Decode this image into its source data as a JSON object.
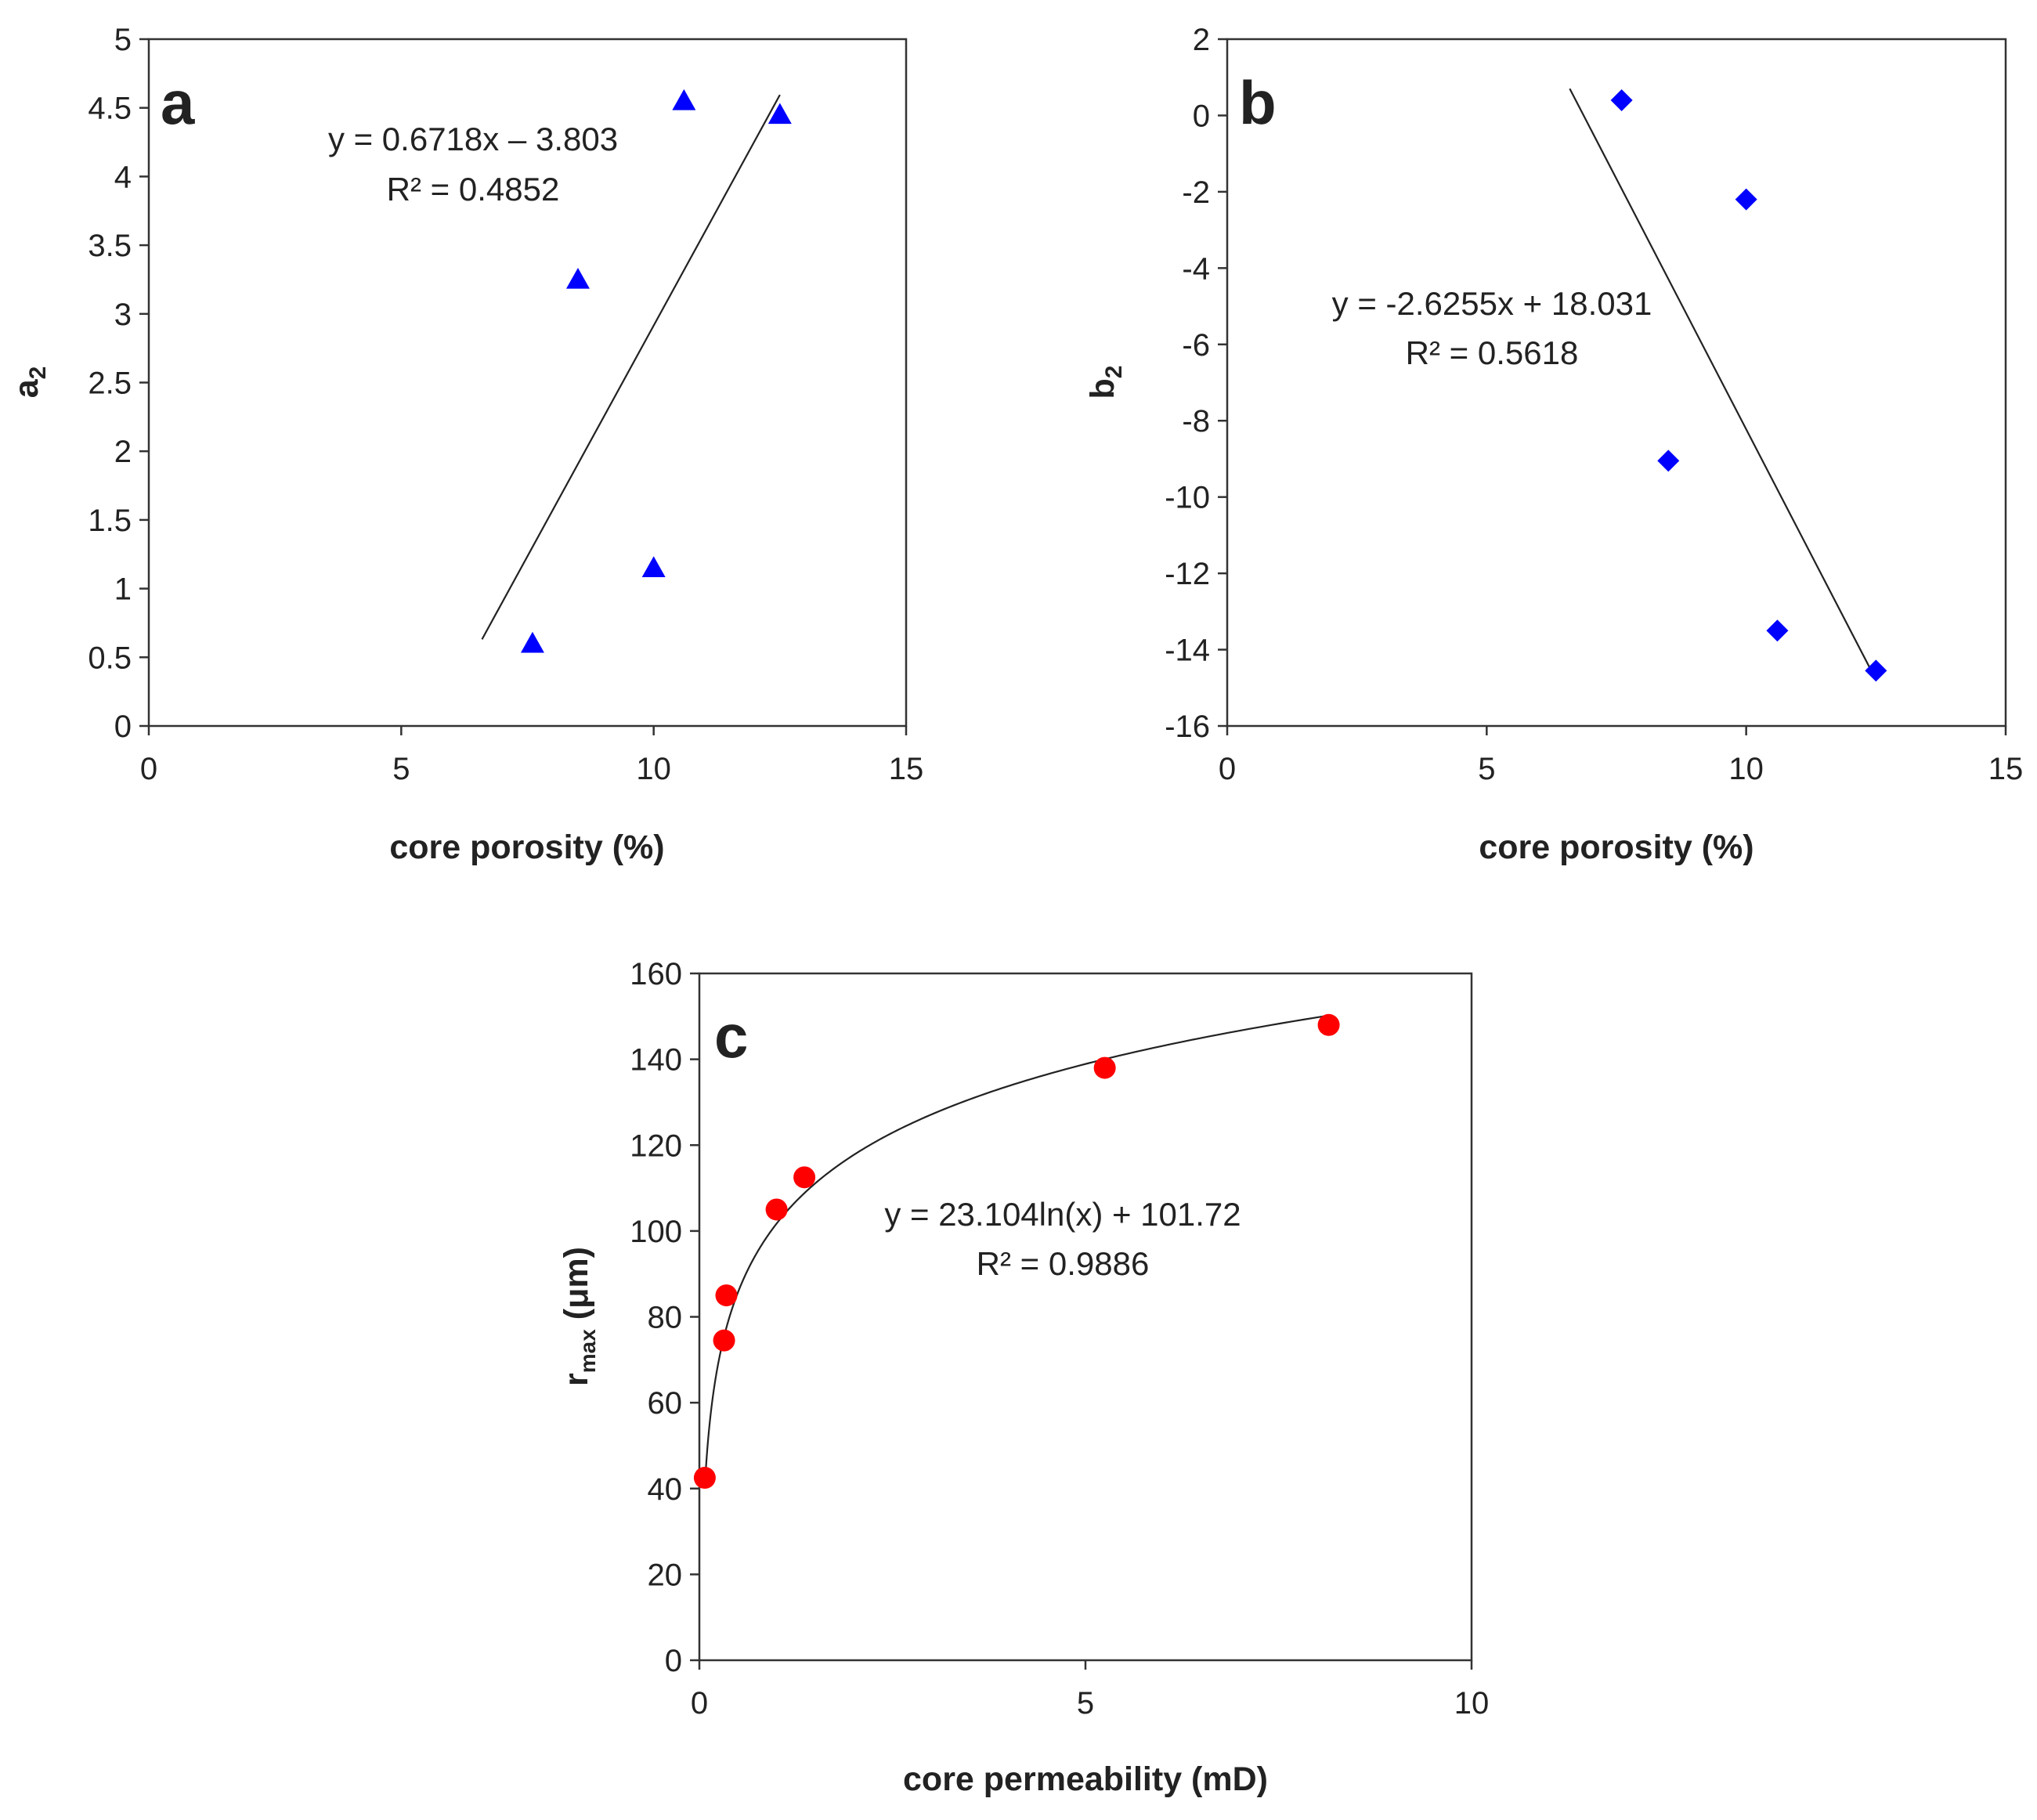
{
  "chart_data": [
    {
      "id": "a",
      "type": "scatter",
      "panel_label": "a",
      "xlabel": "core porosity (%)",
      "ylabel_main": "a",
      "ylabel_sub": "2",
      "xlim": [
        0,
        15
      ],
      "ylim": [
        0,
        5
      ],
      "xticks": [
        0,
        5,
        10,
        15
      ],
      "xtick_labels": [
        "0",
        "5",
        "10",
        "15"
      ],
      "yticks": [
        0,
        0.5,
        1,
        1.5,
        2,
        2.5,
        3,
        3.5,
        4,
        4.5,
        5
      ],
      "ytick_labels": [
        "0",
        "0.5",
        "1",
        "1.5",
        "2",
        "2.5",
        "3",
        "3.5",
        "4",
        "4.5",
        "5"
      ],
      "marker": "triangle",
      "marker_color": "#0000ff",
      "points": [
        {
          "x": 7.6,
          "y": 0.6
        },
        {
          "x": 8.5,
          "y": 3.25
        },
        {
          "x": 10.0,
          "y": 1.15
        },
        {
          "x": 10.6,
          "y": 4.55
        },
        {
          "x": 12.5,
          "y": 4.45
        }
      ],
      "trendline": {
        "kind": "linear",
        "slope": 0.6718,
        "intercept": -3.803,
        "x_range": [
          6.6,
          12.5
        ]
      },
      "equation": "y = 0.6718x – 3.803",
      "r_squared": "R² = 0.4852"
    },
    {
      "id": "b",
      "type": "scatter",
      "panel_label": "b",
      "xlabel": "core porosity (%)",
      "ylabel_main": "b",
      "ylabel_sub": "2",
      "xlim": [
        0,
        15
      ],
      "ylim": [
        -16,
        2
      ],
      "xticks": [
        0,
        5,
        10,
        15
      ],
      "xtick_labels": [
        "0",
        "5",
        "10",
        "15"
      ],
      "yticks": [
        -16,
        -14,
        -12,
        -10,
        -8,
        -6,
        -4,
        -2,
        0,
        2
      ],
      "ytick_labels": [
        "-16",
        "-14",
        "-12",
        "-10",
        "-8",
        "-6",
        "-4",
        "-2",
        "0",
        "2"
      ],
      "marker": "diamond",
      "marker_color": "#0000ff",
      "points": [
        {
          "x": 7.6,
          "y": 0.4
        },
        {
          "x": 8.5,
          "y": -9.05
        },
        {
          "x": 10.0,
          "y": -2.2
        },
        {
          "x": 10.6,
          "y": -13.5
        },
        {
          "x": 12.5,
          "y": -14.55
        }
      ],
      "trendline": {
        "kind": "linear",
        "slope": -2.6255,
        "intercept": 18.031,
        "x_range": [
          6.6,
          12.5
        ]
      },
      "equation": "y = -2.6255x + 18.031",
      "r_squared": "R² = 0.5618"
    },
    {
      "id": "c",
      "type": "scatter",
      "panel_label": "c",
      "xlabel": "core permeability (mD)",
      "ylabel_main": "r",
      "ylabel_sub": "max",
      "ylabel_unit": " (μm)",
      "xlim": [
        0,
        10
      ],
      "ylim": [
        0,
        160
      ],
      "xticks": [
        0,
        5,
        10
      ],
      "xtick_labels": [
        "0",
        "5",
        "10"
      ],
      "yticks": [
        0,
        20,
        40,
        60,
        80,
        100,
        120,
        140,
        160
      ],
      "ytick_labels": [
        "0",
        "20",
        "40",
        "60",
        "80",
        "100",
        "120",
        "140",
        "160"
      ],
      "marker": "circle",
      "marker_color": "#ff0000",
      "points": [
        {
          "x": 0.07,
          "y": 42.5
        },
        {
          "x": 0.32,
          "y": 74.5
        },
        {
          "x": 0.35,
          "y": 85
        },
        {
          "x": 1.0,
          "y": 105
        },
        {
          "x": 1.36,
          "y": 112.5
        },
        {
          "x": 5.25,
          "y": 138
        },
        {
          "x": 8.15,
          "y": 148
        }
      ],
      "trendline": {
        "kind": "log",
        "a": 23.104,
        "b": 101.72,
        "x_range": [
          0.08,
          8.15
        ]
      },
      "equation": "y = 23.104ln(x) + 101.72",
      "r_squared": "R² = 0.9886"
    }
  ]
}
